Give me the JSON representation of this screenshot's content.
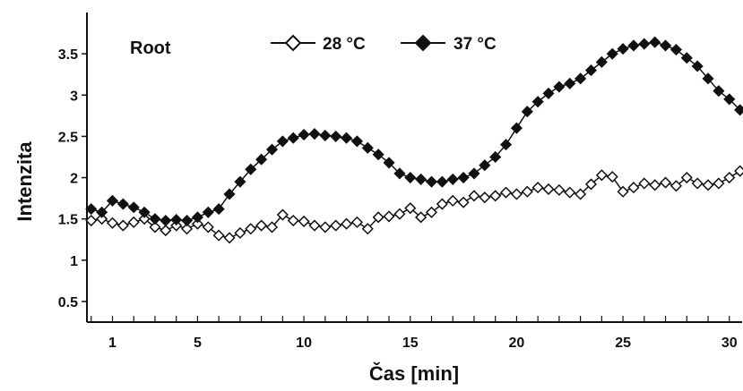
{
  "chart_data": {
    "type": "line",
    "title": "",
    "annotation": "Root",
    "xlabel": "Čas [min]",
    "ylabel": "Intenzita",
    "xlim": [
      -0.2,
      30.6
    ],
    "ylim": [
      0.25,
      4.0
    ],
    "xticks": [
      1,
      5,
      10,
      15,
      20,
      25,
      30
    ],
    "xtick_labels": [
      "1",
      "5",
      "10",
      "15",
      "20",
      "25",
      "30"
    ],
    "yticks": [
      0.5,
      1,
      1.5,
      2,
      2.5,
      3,
      3.5
    ],
    "ytick_labels": [
      "0.5",
      "1",
      "1.5",
      "2",
      "2.5",
      "3",
      "3.5"
    ],
    "grid": false,
    "legend_position": "top-center",
    "series": [
      {
        "name": "28 °C",
        "marker": "open-diamond",
        "color": "#111111",
        "x": [
          0,
          0.5,
          1,
          1.5,
          2,
          2.5,
          3,
          3.5,
          4,
          4.5,
          5,
          5.5,
          6,
          6.5,
          7,
          7.5,
          8,
          8.5,
          9,
          9.5,
          10,
          10.5,
          11,
          11.5,
          12,
          12.5,
          13,
          13.5,
          14,
          14.5,
          15,
          15.5,
          16,
          16.5,
          17,
          17.5,
          18,
          18.5,
          19,
          19.5,
          20,
          20.5,
          21,
          21.5,
          22,
          22.5,
          23,
          23.5,
          24,
          24.5,
          25,
          25.5,
          26,
          26.5,
          27,
          27.5,
          28,
          28.5,
          29,
          29.5,
          30,
          30.5
        ],
        "values": [
          1.48,
          1.5,
          1.45,
          1.42,
          1.46,
          1.5,
          1.4,
          1.36,
          1.42,
          1.38,
          1.44,
          1.4,
          1.3,
          1.27,
          1.33,
          1.38,
          1.42,
          1.4,
          1.55,
          1.48,
          1.47,
          1.42,
          1.4,
          1.42,
          1.44,
          1.46,
          1.38,
          1.52,
          1.53,
          1.56,
          1.63,
          1.52,
          1.58,
          1.68,
          1.72,
          1.7,
          1.78,
          1.76,
          1.78,
          1.82,
          1.8,
          1.83,
          1.88,
          1.86,
          1.85,
          1.82,
          1.8,
          1.92,
          2.03,
          2.01,
          1.83,
          1.88,
          1.93,
          1.91,
          1.94,
          1.9,
          2.0,
          1.93,
          1.91,
          1.93,
          2.0,
          2.08
        ]
      },
      {
        "name": "37 °C",
        "marker": "filled-diamond",
        "color": "#111111",
        "x": [
          0,
          0.5,
          1,
          1.5,
          2,
          2.5,
          3,
          3.5,
          4,
          4.5,
          5,
          5.5,
          6,
          6.5,
          7,
          7.5,
          8,
          8.5,
          9,
          9.5,
          10,
          10.5,
          11,
          11.5,
          12,
          12.5,
          13,
          13.5,
          14,
          14.5,
          15,
          15.5,
          16,
          16.5,
          17,
          17.5,
          18,
          18.5,
          19,
          19.5,
          20,
          20.5,
          21,
          21.5,
          22,
          22.5,
          23,
          23.5,
          24,
          24.5,
          25,
          25.5,
          26,
          26.5,
          27,
          27.5,
          28,
          28.5,
          29,
          29.5,
          30,
          30.5
        ],
        "values": [
          1.62,
          1.58,
          1.72,
          1.68,
          1.64,
          1.58,
          1.5,
          1.48,
          1.49,
          1.48,
          1.52,
          1.58,
          1.62,
          1.8,
          1.95,
          2.1,
          2.22,
          2.34,
          2.44,
          2.48,
          2.52,
          2.53,
          2.51,
          2.5,
          2.48,
          2.44,
          2.36,
          2.28,
          2.18,
          2.05,
          2.0,
          1.98,
          1.95,
          1.95,
          1.98,
          2.0,
          2.05,
          2.15,
          2.25,
          2.4,
          2.6,
          2.8,
          2.92,
          3.02,
          3.1,
          3.14,
          3.2,
          3.3,
          3.4,
          3.5,
          3.56,
          3.6,
          3.62,
          3.64,
          3.6,
          3.55,
          3.45,
          3.35,
          3.2,
          3.05,
          2.95,
          2.82
        ]
      }
    ]
  }
}
